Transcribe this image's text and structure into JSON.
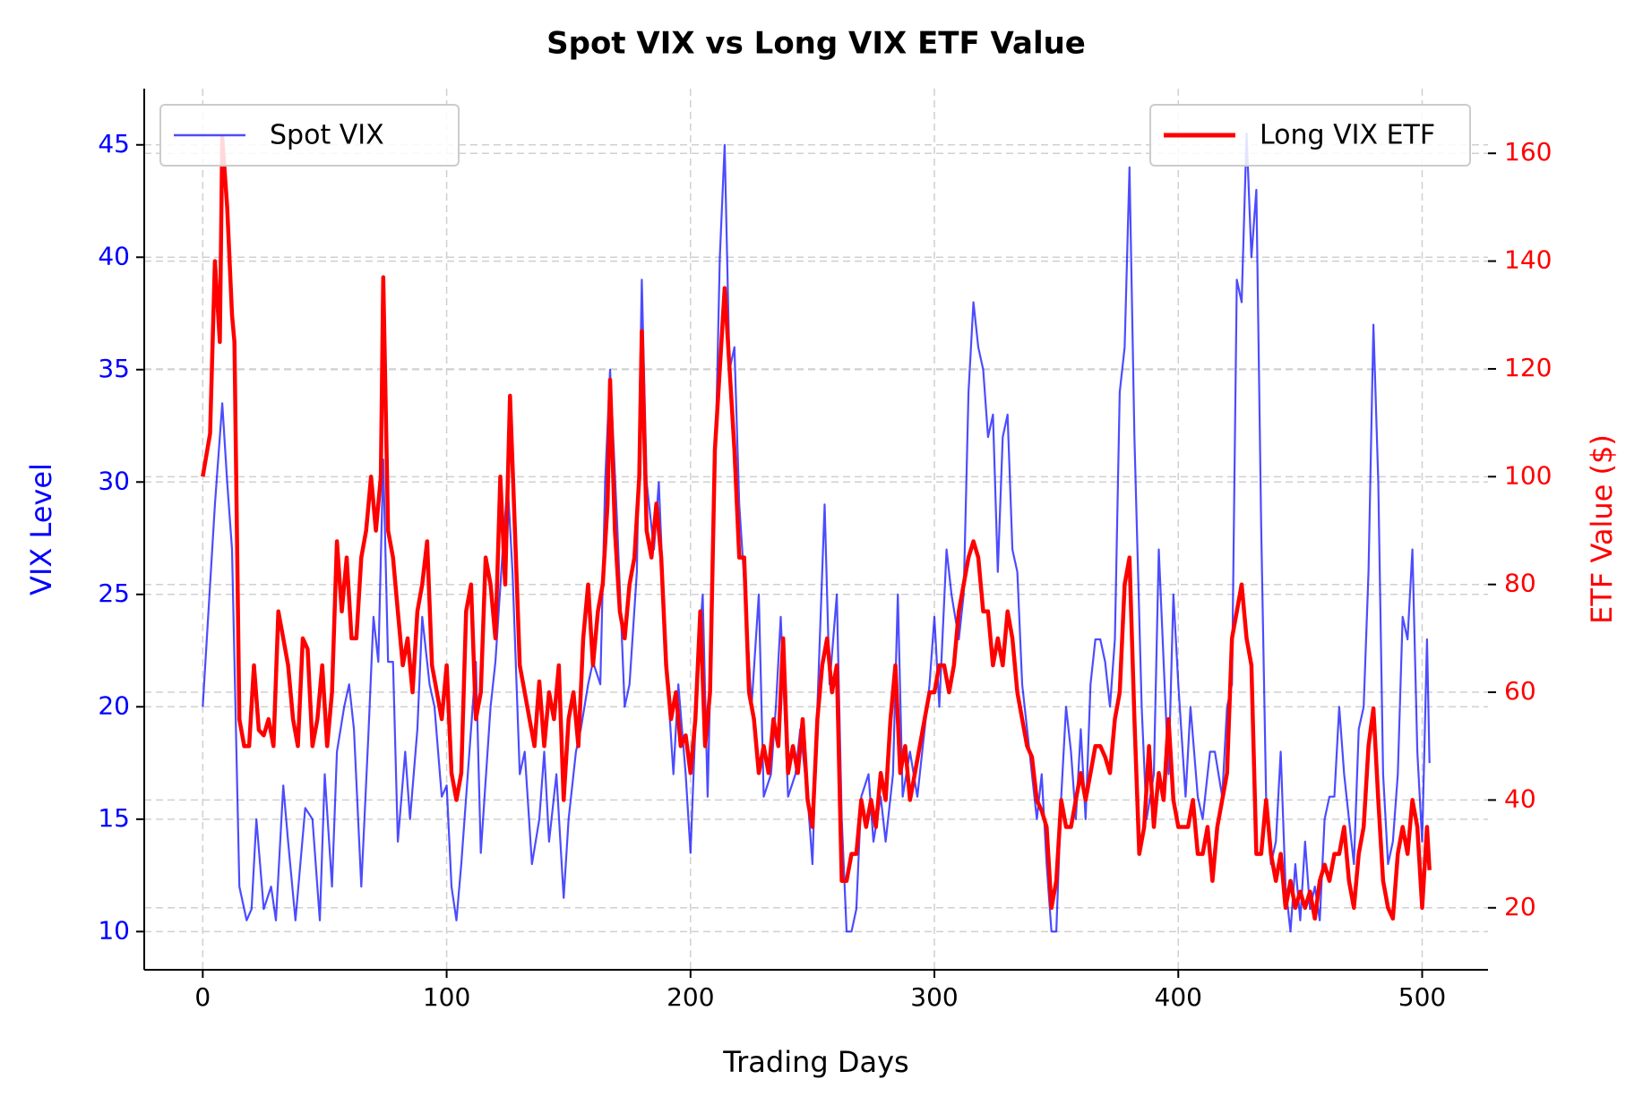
{
  "chart_data": {
    "type": "line",
    "title": "Spot VIX vs Long VIX ETF Value",
    "xlabel": "Trading Days",
    "ylabel": "VIX Level",
    "y2label": "ETF Value ($)",
    "xlim": [
      -24,
      527
    ],
    "xticks": [
      0,
      100,
      200,
      300,
      400,
      500
    ],
    "ylim": [
      8.3,
      47.5
    ],
    "yticks": [
      10,
      15,
      20,
      25,
      30,
      35,
      40,
      45
    ],
    "y2lim": [
      8.5,
      172
    ],
    "y2ticks": [
      20,
      40,
      60,
      80,
      100,
      120,
      140,
      160
    ],
    "grid": true,
    "series": [
      {
        "name": "Spot VIX",
        "color": "#0000ff",
        "axis": "y",
        "legend": "upper left",
        "x": [
          0,
          5,
          8,
          10,
          12,
          15,
          18,
          20,
          22,
          25,
          28,
          30,
          33,
          35,
          38,
          42,
          45,
          48,
          50,
          53,
          55,
          58,
          60,
          62,
          65,
          68,
          70,
          72,
          74,
          76,
          78,
          80,
          83,
          85,
          88,
          90,
          93,
          95,
          98,
          100,
          102,
          104,
          106,
          110,
          112,
          114,
          118,
          120,
          123,
          125,
          127,
          130,
          132,
          135,
          138,
          140,
          142,
          145,
          148,
          150,
          153,
          155,
          158,
          160,
          163,
          165,
          167,
          170,
          173,
          175,
          178,
          180,
          182,
          185,
          187,
          190,
          193,
          195,
          198,
          200,
          203,
          205,
          207,
          210,
          212,
          214,
          216,
          218,
          220,
          223,
          225,
          228,
          230,
          233,
          235,
          237,
          240,
          243,
          245,
          248,
          250,
          252,
          255,
          257,
          260,
          262,
          264,
          266,
          268,
          270,
          273,
          275,
          278,
          280,
          283,
          285,
          287,
          290,
          293,
          295,
          298,
          300,
          302,
          305,
          307,
          310,
          312,
          314,
          316,
          318,
          320,
          322,
          324,
          326,
          328,
          330,
          332,
          334,
          336,
          338,
          340,
          342,
          344,
          346,
          348,
          350,
          352,
          354,
          356,
          358,
          360,
          362,
          364,
          366,
          368,
          370,
          372,
          374,
          376,
          378,
          380,
          382,
          385,
          387,
          390,
          392,
          394,
          396,
          398,
          400,
          403,
          405,
          408,
          410,
          413,
          415,
          418,
          420,
          422,
          424,
          426,
          428,
          430,
          432,
          434,
          436,
          438,
          440,
          442,
          444,
          446,
          448,
          450,
          452,
          454,
          456,
          458,
          460,
          462,
          464,
          466,
          468,
          470,
          472,
          474,
          476,
          478,
          480,
          482,
          484,
          486,
          488,
          490,
          492,
          494,
          496,
          498,
          500,
          502,
          503
        ],
        "values": [
          20,
          29,
          33.5,
          30,
          27,
          12,
          10.5,
          11,
          15,
          11,
          12,
          10.5,
          16.5,
          14,
          10.5,
          15.5,
          15,
          10.5,
          17,
          12,
          18,
          20,
          21,
          19,
          12,
          19,
          24,
          22,
          31,
          22,
          22,
          14,
          18,
          15,
          19,
          24,
          21,
          20,
          16,
          16.5,
          12,
          10.5,
          13,
          19,
          22,
          13.5,
          20,
          22,
          27,
          30,
          26,
          17,
          18,
          13,
          15,
          18,
          14,
          17,
          11.5,
          15,
          18,
          19,
          21,
          22,
          21,
          30,
          35,
          28,
          20,
          21,
          26,
          39,
          30,
          27,
          30,
          22,
          17,
          21,
          17,
          13.5,
          22,
          25,
          16,
          30,
          40,
          45,
          35,
          36,
          29,
          24,
          20,
          25,
          16,
          17,
          20,
          24,
          16,
          17,
          19,
          16,
          13,
          20,
          29,
          21,
          25,
          15,
          10,
          10,
          11,
          16,
          17,
          14,
          16,
          14,
          17,
          25,
          16,
          18,
          16,
          18,
          21,
          24,
          20,
          27,
          25,
          23,
          25,
          34,
          38,
          36,
          35,
          32,
          33,
          26,
          32,
          33,
          27,
          26,
          21,
          19,
          17,
          15,
          17,
          13,
          10,
          10,
          16,
          20,
          18,
          15,
          19,
          15,
          21,
          23,
          23,
          22,
          20,
          23,
          34,
          36,
          44,
          32,
          20,
          15,
          17,
          27,
          22,
          17,
          25,
          21,
          16,
          20,
          16,
          15,
          18,
          18,
          16,
          20,
          21,
          39,
          38,
          45.5,
          40,
          43,
          28,
          16,
          13,
          14,
          18,
          12,
          10,
          13,
          10.5,
          14,
          11,
          12,
          10.5,
          15,
          16,
          16,
          20,
          17,
          15,
          13,
          19,
          20,
          26,
          37,
          30,
          17,
          13,
          14,
          17,
          24,
          23,
          27,
          18,
          14,
          23,
          17.5
        ]
      },
      {
        "name": "Long VIX ETF",
        "color": "#ff0000",
        "axis": "y2",
        "legend": "upper right",
        "x": [
          0,
          3,
          5,
          7,
          8,
          10,
          12,
          13,
          15,
          17,
          19,
          21,
          23,
          25,
          27,
          29,
          31,
          33,
          35,
          37,
          39,
          41,
          43,
          45,
          47,
          49,
          51,
          53,
          55,
          57,
          59,
          61,
          63,
          65,
          67,
          69,
          71,
          73,
          74,
          76,
          78,
          80,
          82,
          84,
          86,
          88,
          90,
          92,
          94,
          96,
          98,
          100,
          102,
          104,
          106,
          108,
          110,
          112,
          114,
          116,
          118,
          120,
          122,
          124,
          126,
          128,
          130,
          132,
          134,
          136,
          138,
          140,
          142,
          144,
          146,
          148,
          150,
          152,
          154,
          156,
          158,
          160,
          162,
          164,
          166,
          167,
          169,
          171,
          173,
          175,
          177,
          179,
          180,
          182,
          184,
          186,
          188,
          190,
          192,
          194,
          196,
          198,
          200,
          202,
          204,
          206,
          208,
          210,
          212,
          214,
          216,
          218,
          220,
          222,
          224,
          226,
          228,
          230,
          232,
          234,
          236,
          238,
          240,
          242,
          244,
          246,
          248,
          250,
          252,
          254,
          256,
          258,
          260,
          262,
          264,
          266,
          268,
          270,
          272,
          274,
          276,
          278,
          280,
          282,
          284,
          286,
          288,
          290,
          292,
          294,
          296,
          298,
          300,
          302,
          304,
          306,
          308,
          310,
          312,
          314,
          316,
          318,
          320,
          322,
          324,
          326,
          328,
          330,
          332,
          334,
          336,
          338,
          340,
          342,
          344,
          346,
          348,
          350,
          352,
          354,
          356,
          358,
          360,
          362,
          364,
          366,
          368,
          370,
          372,
          374,
          376,
          378,
          380,
          382,
          384,
          386,
          388,
          390,
          392,
          394,
          396,
          398,
          400,
          402,
          404,
          406,
          408,
          410,
          412,
          414,
          416,
          418,
          420,
          422,
          424,
          426,
          428,
          430,
          432,
          434,
          436,
          438,
          440,
          442,
          444,
          446,
          448,
          450,
          452,
          454,
          456,
          458,
          460,
          462,
          464,
          466,
          468,
          470,
          472,
          474,
          476,
          478,
          480,
          482,
          484,
          486,
          488,
          490,
          492,
          494,
          496,
          498,
          500,
          502,
          503
        ],
        "values": [
          100,
          108,
          140,
          125,
          163,
          150,
          130,
          125,
          55,
          50,
          50,
          65,
          53,
          52,
          55,
          50,
          75,
          70,
          65,
          55,
          50,
          70,
          68,
          50,
          55,
          65,
          50,
          60,
          88,
          75,
          85,
          70,
          70,
          85,
          90,
          100,
          90,
          100,
          137,
          90,
          85,
          75,
          65,
          70,
          60,
          75,
          80,
          88,
          65,
          60,
          55,
          65,
          45,
          40,
          45,
          75,
          80,
          55,
          60,
          85,
          80,
          70,
          100,
          80,
          115,
          90,
          65,
          60,
          55,
          50,
          62,
          50,
          60,
          55,
          65,
          40,
          55,
          60,
          50,
          70,
          80,
          65,
          75,
          80,
          95,
          118,
          90,
          75,
          70,
          80,
          85,
          100,
          127,
          90,
          85,
          95,
          85,
          65,
          55,
          60,
          50,
          52,
          45,
          55,
          75,
          50,
          60,
          105,
          120,
          135,
          120,
          105,
          85,
          85,
          60,
          55,
          45,
          50,
          45,
          55,
          50,
          70,
          45,
          50,
          45,
          55,
          40,
          35,
          55,
          65,
          70,
          60,
          65,
          25,
          25,
          30,
          30,
          40,
          35,
          40,
          35,
          45,
          40,
          55,
          65,
          45,
          50,
          40,
          45,
          50,
          55,
          60,
          60,
          65,
          65,
          60,
          65,
          75,
          80,
          85,
          88,
          85,
          75,
          75,
          65,
          70,
          65,
          75,
          70,
          60,
          55,
          50,
          48,
          40,
          38,
          35,
          20,
          25,
          40,
          35,
          35,
          40,
          45,
          40,
          45,
          50,
          50,
          48,
          45,
          55,
          60,
          80,
          85,
          55,
          30,
          35,
          50,
          35,
          45,
          40,
          55,
          40,
          35,
          35,
          35,
          40,
          30,
          30,
          35,
          25,
          35,
          40,
          45,
          70,
          75,
          80,
          70,
          65,
          30,
          30,
          40,
          30,
          25,
          30,
          20,
          25,
          20,
          23,
          20,
          23,
          18,
          25,
          28,
          25,
          30,
          30,
          35,
          25,
          20,
          30,
          35,
          50,
          57,
          40,
          25,
          20,
          18,
          30,
          35,
          30,
          40,
          35,
          20,
          35,
          27
        ]
      }
    ]
  }
}
